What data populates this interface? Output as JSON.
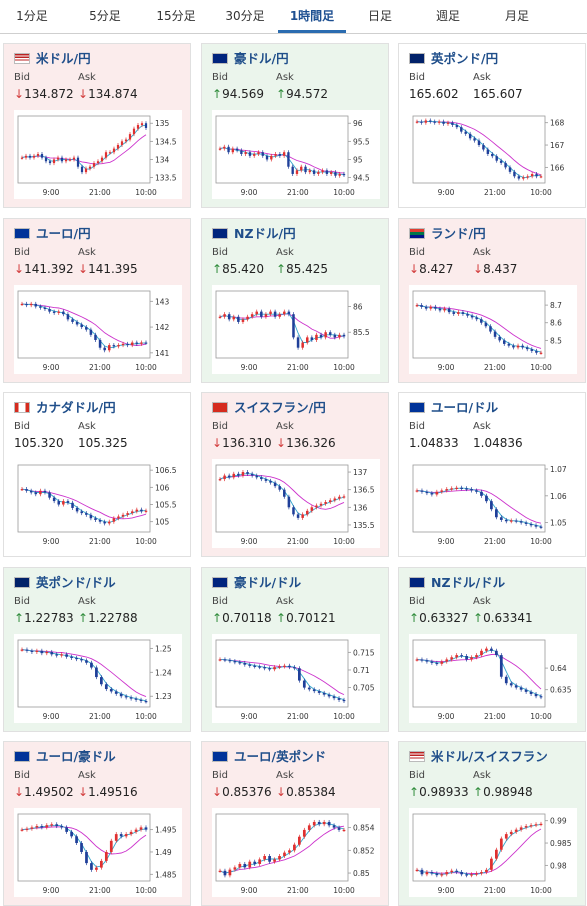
{
  "tabs": [
    "1分足",
    "5分足",
    "15分足",
    "30分足",
    "1時間足",
    "日足",
    "週足",
    "月足"
  ],
  "active_tab": 4,
  "labels": {
    "bid": "Bid",
    "ask": "Ask"
  },
  "arrow_glyphs": {
    "up": "↑",
    "down": "↓"
  },
  "colors": {
    "up": "#2e8b3a",
    "down": "#d23b3b",
    "ma": "#cc33cc",
    "ma_fast": "#33a6cc",
    "bull": "#e03030",
    "bear": "#1f3f99",
    "bg_down": "#fbecec",
    "bg_up": "#ebf5ec"
  },
  "x_ticks": [
    "9:00",
    "21:00",
    "10:00"
  ],
  "cards": [
    {
      "title": "米ドル/円",
      "flag": "us",
      "bid": "134.872",
      "ask": "134.874",
      "dir": "down",
      "bg": "down",
      "y_ticks": [
        "135",
        "134.5",
        "134",
        "133.5"
      ],
      "yr": [
        133.35,
        135.2
      ],
      "series": [
        134.05,
        134.1,
        134.05,
        134.1,
        134.15,
        134.05,
        133.95,
        133.9,
        134.0,
        134.05,
        133.95,
        134.0,
        134.0,
        134.05,
        133.8,
        133.65,
        133.75,
        133.8,
        133.9,
        133.95,
        134.05,
        134.2,
        134.2,
        134.3,
        134.4,
        134.5,
        134.55,
        134.7,
        134.85,
        134.95,
        135.0,
        134.87
      ]
    },
    {
      "title": "豪ドル/円",
      "flag": "au",
      "bid": "94.569",
      "ask": "94.572",
      "dir": "up",
      "bg": "up",
      "y_ticks": [
        "96",
        "95.5",
        "95",
        "94.5"
      ],
      "yr": [
        94.35,
        96.2
      ],
      "series": [
        95.3,
        95.35,
        95.2,
        95.3,
        95.25,
        95.15,
        95.2,
        95.1,
        95.15,
        95.2,
        95.1,
        95.0,
        95.1,
        95.15,
        95.1,
        95.2,
        94.8,
        94.6,
        94.7,
        94.8,
        94.65,
        94.7,
        94.6,
        94.65,
        94.7,
        94.6,
        94.65,
        94.55,
        94.6,
        94.57
      ]
    },
    {
      "title": "英ポンド/円",
      "flag": "uk",
      "bid": "165.602",
      "ask": "165.607",
      "dir": "none",
      "bg": "flat",
      "y_ticks": [
        "168",
        "167",
        "166"
      ],
      "yr": [
        165.3,
        168.3
      ],
      "series": [
        168.05,
        168.0,
        168.1,
        168.05,
        168.0,
        168.05,
        167.95,
        168.0,
        167.9,
        167.8,
        167.6,
        167.5,
        167.3,
        167.2,
        167.0,
        166.8,
        166.6,
        166.5,
        166.3,
        166.2,
        166.0,
        165.8,
        165.6,
        165.5,
        165.55,
        165.6,
        165.7,
        165.6,
        165.6
      ]
    },
    {
      "title": "ユーロ/円",
      "flag": "eu",
      "bid": "141.392",
      "ask": "141.395",
      "dir": "down",
      "bg": "down",
      "y_ticks": [
        "143",
        "142",
        "141"
      ],
      "yr": [
        140.8,
        143.4
      ],
      "series": [
        142.9,
        142.85,
        142.9,
        142.8,
        142.75,
        142.7,
        142.6,
        142.55,
        142.6,
        142.5,
        142.3,
        142.2,
        142.1,
        142.0,
        141.9,
        141.7,
        141.5,
        141.2,
        141.1,
        141.3,
        141.25,
        141.3,
        141.35,
        141.3,
        141.4,
        141.35,
        141.4,
        141.39
      ]
    },
    {
      "title": "NZドル/円",
      "flag": "nz",
      "bid": "85.420",
      "ask": "85.425",
      "dir": "up",
      "bg": "up",
      "y_ticks": [
        "86",
        "85.5"
      ],
      "yr": [
        85.0,
        86.3
      ],
      "series": [
        85.8,
        85.85,
        85.75,
        85.8,
        85.7,
        85.75,
        85.8,
        85.85,
        85.9,
        85.8,
        85.85,
        85.9,
        85.8,
        85.85,
        85.9,
        85.85,
        85.4,
        85.2,
        85.3,
        85.4,
        85.35,
        85.45,
        85.4,
        85.5,
        85.45,
        85.4,
        85.45,
        85.42
      ]
    },
    {
      "title": "ランド/円",
      "flag": "za",
      "bid": "8.427",
      "ask": "8.437",
      "dir": "down",
      "bg": "down",
      "y_ticks": [
        "8.7",
        "8.6",
        "8.5"
      ],
      "yr": [
        8.4,
        8.78
      ],
      "series": [
        8.7,
        8.69,
        8.68,
        8.69,
        8.68,
        8.67,
        8.68,
        8.66,
        8.65,
        8.66,
        8.65,
        8.64,
        8.63,
        8.62,
        8.6,
        8.58,
        8.55,
        8.52,
        8.5,
        8.48,
        8.47,
        8.46,
        8.47,
        8.46,
        8.45,
        8.44,
        8.43,
        8.43
      ]
    },
    {
      "title": "カナダドル/円",
      "flag": "ca",
      "bid": "105.320",
      "ask": "105.325",
      "dir": "none",
      "bg": "flat",
      "y_ticks": [
        "106.5",
        "106",
        "105.5",
        "105"
      ],
      "yr": [
        104.7,
        106.65
      ],
      "series": [
        105.95,
        105.9,
        105.85,
        105.8,
        105.9,
        105.85,
        105.7,
        105.6,
        105.5,
        105.6,
        105.55,
        105.4,
        105.3,
        105.25,
        105.2,
        105.1,
        105.05,
        105.0,
        104.95,
        105.0,
        105.1,
        105.15,
        105.2,
        105.25,
        105.3,
        105.35,
        105.3,
        105.32
      ]
    },
    {
      "title": "スイスフラン/円",
      "flag": "ch",
      "bid": "136.310",
      "ask": "136.326",
      "dir": "down",
      "bg": "down",
      "y_ticks": [
        "137",
        "136.5",
        "136",
        "135.5"
      ],
      "yr": [
        135.3,
        137.2
      ],
      "series": [
        136.8,
        136.9,
        136.85,
        136.95,
        136.9,
        137.0,
        136.95,
        136.9,
        136.85,
        136.8,
        136.75,
        136.7,
        136.6,
        136.5,
        136.3,
        136.0,
        135.8,
        135.7,
        135.8,
        135.9,
        136.0,
        136.05,
        136.1,
        136.15,
        136.2,
        136.25,
        136.3,
        136.31
      ]
    },
    {
      "title": "ユーロ/ドル",
      "flag": "eu_us",
      "bid": "1.04833",
      "ask": "1.04836",
      "dir": "none",
      "bg": "flat",
      "y_ticks": [
        "1.07",
        "1.06",
        "1.05"
      ],
      "yr": [
        1.0465,
        1.0715
      ],
      "series": [
        1.062,
        1.0615,
        1.061,
        1.0605,
        1.0615,
        1.062,
        1.0625,
        1.0628,
        1.063,
        1.0628,
        1.0625,
        1.062,
        1.0615,
        1.06,
        1.058,
        1.055,
        1.052,
        1.051,
        1.0505,
        1.0508,
        1.0505,
        1.05,
        1.0495,
        1.049,
        1.0485,
        1.0483
      ]
    },
    {
      "title": "英ポンド/ドル",
      "flag": "uk_us",
      "bid": "1.22783",
      "ask": "1.22788",
      "dir": "up",
      "bg": "up",
      "y_ticks": [
        "1.25",
        "1.24",
        "1.23"
      ],
      "yr": [
        1.2255,
        1.2535
      ],
      "series": [
        1.2495,
        1.249,
        1.2485,
        1.249,
        1.248,
        1.2485,
        1.2475,
        1.247,
        1.2475,
        1.2465,
        1.246,
        1.2455,
        1.245,
        1.244,
        1.242,
        1.238,
        1.235,
        1.233,
        1.232,
        1.231,
        1.23,
        1.2295,
        1.229,
        1.2285,
        1.228,
        1.2278
      ]
    },
    {
      "title": "豪ドル/ドル",
      "flag": "au_us",
      "bid": "0.70118",
      "ask": "0.70121",
      "dir": "up",
      "bg": "up",
      "y_ticks": [
        "0.715",
        "0.71",
        "0.705"
      ],
      "yr": [
        0.6995,
        0.7185
      ],
      "series": [
        0.713,
        0.7128,
        0.7125,
        0.7122,
        0.712,
        0.7115,
        0.7112,
        0.711,
        0.7108,
        0.7105,
        0.7102,
        0.7108,
        0.711,
        0.7112,
        0.7108,
        0.7105,
        0.707,
        0.705,
        0.7045,
        0.704,
        0.7035,
        0.703,
        0.7025,
        0.702,
        0.7015,
        0.7012
      ]
    },
    {
      "title": "NZドル/ドル",
      "flag": "nz_us",
      "bid": "0.63327",
      "ask": "0.63341",
      "dir": "up",
      "bg": "up",
      "y_ticks": [
        "0.64",
        "0.635"
      ],
      "yr": [
        0.631,
        0.6465
      ],
      "series": [
        0.642,
        0.6418,
        0.6415,
        0.6412,
        0.641,
        0.6415,
        0.642,
        0.6425,
        0.643,
        0.6428,
        0.642,
        0.6425,
        0.643,
        0.644,
        0.6445,
        0.644,
        0.643,
        0.638,
        0.6365,
        0.636,
        0.6355,
        0.635,
        0.6345,
        0.634,
        0.6335,
        0.6333
      ]
    },
    {
      "title": "ユーロ/豪ドル",
      "flag": "eu_au",
      "bid": "1.49502",
      "ask": "1.49516",
      "dir": "down",
      "bg": "down",
      "y_ticks": [
        "1.495",
        "1.49",
        "1.485"
      ],
      "yr": [
        1.4835,
        1.4985
      ],
      "series": [
        1.495,
        1.4952,
        1.4955,
        1.4958,
        1.4955,
        1.496,
        1.4962,
        1.4958,
        1.4955,
        1.4945,
        1.4935,
        1.492,
        1.49,
        1.4875,
        1.486,
        1.4865,
        1.488,
        1.49,
        1.4925,
        1.494,
        1.4935,
        1.494,
        1.4945,
        1.495,
        1.4955,
        1.495
      ]
    },
    {
      "title": "ユーロ/英ポンド",
      "flag": "eu_uk",
      "bid": "0.85376",
      "ask": "0.85384",
      "dir": "down",
      "bg": "down",
      "y_ticks": [
        "0.854",
        "0.852",
        "0.85"
      ],
      "yr": [
        0.8493,
        0.8552
      ],
      "series": [
        0.8502,
        0.8498,
        0.8503,
        0.8505,
        0.8508,
        0.8505,
        0.851,
        0.8508,
        0.8512,
        0.8515,
        0.851,
        0.8512,
        0.8515,
        0.8518,
        0.852,
        0.8525,
        0.8532,
        0.8538,
        0.8542,
        0.8545,
        0.8543,
        0.8545,
        0.8542,
        0.854,
        0.8538,
        0.8538
      ]
    },
    {
      "title": "米ドル/スイスフラン",
      "flag": "us_ch",
      "bid": "0.98933",
      "ask": "0.98948",
      "dir": "up",
      "bg": "up",
      "y_ticks": [
        "0.99",
        "0.985",
        "0.98"
      ],
      "yr": [
        0.9765,
        0.9915
      ],
      "series": [
        0.979,
        0.978,
        0.9785,
        0.9782,
        0.9778,
        0.978,
        0.9785,
        0.9788,
        0.9785,
        0.978,
        0.9778,
        0.978,
        0.9782,
        0.9785,
        0.979,
        0.9815,
        0.9835,
        0.986,
        0.987,
        0.9875,
        0.988,
        0.9885,
        0.9888,
        0.989,
        0.9892,
        0.9893
      ]
    }
  ]
}
